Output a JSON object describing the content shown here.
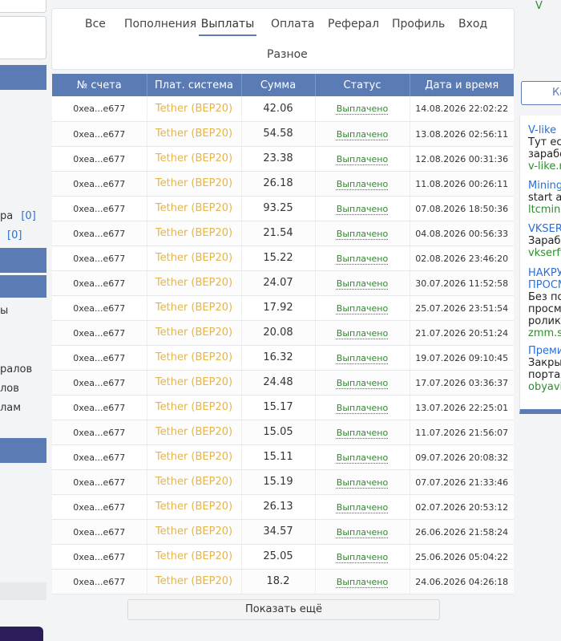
{
  "left_sidebar": {
    "row1_label": "ра",
    "row1_count": "[0]",
    "row2_count": "[0]",
    "items": [
      "ы",
      "ралов",
      "лов",
      "лам"
    ]
  },
  "tabs": [
    {
      "label": "Все",
      "active": false
    },
    {
      "label": "Пополнения",
      "active": false
    },
    {
      "label": "Выплаты",
      "active": true
    },
    {
      "label": "Оплата",
      "active": false
    },
    {
      "label": "Реферал",
      "active": false
    },
    {
      "label": "Профиль",
      "active": false
    },
    {
      "label": "Вход",
      "active": false
    },
    {
      "label": "Разное",
      "active": false
    }
  ],
  "table": {
    "headers": [
      "№ счета",
      "Плат. система",
      "Сумма",
      "Статус",
      "Дата и время"
    ],
    "rows": [
      {
        "account": "0xea...e677",
        "system": "Tether (BEP20)",
        "amount": "42.06",
        "status": "Выплачено",
        "datetime": "14.08.2026 22:02:22"
      },
      {
        "account": "0xea...e677",
        "system": "Tether (BEP20)",
        "amount": "54.58",
        "status": "Выплачено",
        "datetime": "13.08.2026 02:56:11"
      },
      {
        "account": "0xea...e677",
        "system": "Tether (BEP20)",
        "amount": "23.38",
        "status": "Выплачено",
        "datetime": "12.08.2026 00:31:36"
      },
      {
        "account": "0xea...e677",
        "system": "Tether (BEP20)",
        "amount": "26.18",
        "status": "Выплачено",
        "datetime": "11.08.2026 00:26:11"
      },
      {
        "account": "0xea...e677",
        "system": "Tether (BEP20)",
        "amount": "93.25",
        "status": "Выплачено",
        "datetime": "07.08.2026 18:50:36"
      },
      {
        "account": "0xea...e677",
        "system": "Tether (BEP20)",
        "amount": "21.54",
        "status": "Выплачено",
        "datetime": "04.08.2026 00:56:33"
      },
      {
        "account": "0xea...e677",
        "system": "Tether (BEP20)",
        "amount": "15.22",
        "status": "Выплачено",
        "datetime": "02.08.2026 23:46:20"
      },
      {
        "account": "0xea...e677",
        "system": "Tether (BEP20)",
        "amount": "24.07",
        "status": "Выплачено",
        "datetime": "30.07.2026 11:52:58"
      },
      {
        "account": "0xea...e677",
        "system": "Tether (BEP20)",
        "amount": "17.92",
        "status": "Выплачено",
        "datetime": "25.07.2026 23:51:54"
      },
      {
        "account": "0xea...e677",
        "system": "Tether (BEP20)",
        "amount": "20.08",
        "status": "Выплачено",
        "datetime": "21.07.2026 20:51:24"
      },
      {
        "account": "0xea...e677",
        "system": "Tether (BEP20)",
        "amount": "16.32",
        "status": "Выплачено",
        "datetime": "19.07.2026 09:10:45"
      },
      {
        "account": "0xea...e677",
        "system": "Tether (BEP20)",
        "amount": "24.48",
        "status": "Выплачено",
        "datetime": "17.07.2026 03:36:37"
      },
      {
        "account": "0xea...e677",
        "system": "Tether (BEP20)",
        "amount": "15.17",
        "status": "Выплачено",
        "datetime": "13.07.2026 22:25:01"
      },
      {
        "account": "0xea...e677",
        "system": "Tether (BEP20)",
        "amount": "15.05",
        "status": "Выплачено",
        "datetime": "11.07.2026 21:56:07"
      },
      {
        "account": "0xea...e677",
        "system": "Tether (BEP20)",
        "amount": "15.11",
        "status": "Выплачено",
        "datetime": "09.07.2026 20:08:32"
      },
      {
        "account": "0xea...e677",
        "system": "Tether (BEP20)",
        "amount": "15.19",
        "status": "Выплачено",
        "datetime": "07.07.2026 21:33:46"
      },
      {
        "account": "0xea...e677",
        "system": "Tether (BEP20)",
        "amount": "26.13",
        "status": "Выплачено",
        "datetime": "02.07.2026 20:53:12"
      },
      {
        "account": "0xea...e677",
        "system": "Tether (BEP20)",
        "amount": "34.57",
        "status": "Выплачено",
        "datetime": "26.06.2026 21:58:24"
      },
      {
        "account": "0xea...e677",
        "system": "Tether (BEP20)",
        "amount": "25.05",
        "status": "Выплачено",
        "datetime": "25.06.2026 05:04:22"
      },
      {
        "account": "0xea...e677",
        "system": "Tether (BEP20)",
        "amount": "18.2",
        "status": "Выплачено",
        "datetime": "24.06.2026 04:26:18"
      }
    ]
  },
  "show_more_label": "Показать ещё",
  "right_sidebar": {
    "top_fragment": "V",
    "button_label": "Ка",
    "ads": [
      {
        "title": "V-like",
        "lines": [
          "Тут ест",
          "зарабо"
        ],
        "url": "v-like.ru"
      },
      {
        "title": "Mining",
        "lines": [
          "start ar"
        ],
        "url": "ltcmine"
      },
      {
        "title": "VKSERF",
        "lines": [
          "Зарабо"
        ],
        "url": "vkserfi"
      },
      {
        "title": "НАКРУ",
        "title2": "ПРОСМ",
        "lines": [
          "Без по",
          "просмо",
          "ролики"
        ],
        "url": "zmm.su"
      },
      {
        "title": "Преми",
        "lines": [
          "Закры",
          "портал"
        ],
        "url": "obyavir"
      }
    ]
  },
  "colors": {
    "accent": "#5b7bb4",
    "system_text": "#e3b54a",
    "status_text": "#2e8b2e",
    "link": "#2a6fd6"
  }
}
